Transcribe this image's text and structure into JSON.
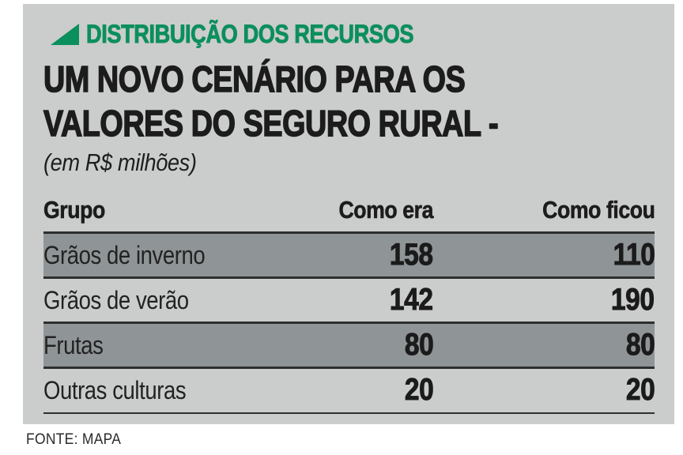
{
  "kicker": {
    "label": "DISTRIBUIÇÃO DOS RECURSOS",
    "color": "#0b8f5d",
    "icon": "triangle-lower-right"
  },
  "title": {
    "line1": "UM NOVO CENÁRIO PARA OS",
    "line2": "VALORES DO SEGURO RURAL -",
    "subtitle": "(em R$ milhões)"
  },
  "table": {
    "columns": [
      "Grupo",
      "Como era",
      "Como ficou"
    ],
    "rows": [
      {
        "grupo": "Grãos de inverno",
        "como_era": "158",
        "como_ficou": "110",
        "highlighted": true
      },
      {
        "grupo": "Grãos de verão",
        "como_era": "142",
        "como_ficou": "190",
        "highlighted": false
      },
      {
        "grupo": "Frutas",
        "como_era": "80",
        "como_ficou": "80",
        "highlighted": true
      },
      {
        "grupo": "Outras culturas",
        "como_era": "20",
        "como_ficou": "20",
        "highlighted": false
      }
    ]
  },
  "source": "FONTE: MAPA",
  "colors": {
    "card_background": "#cbcccc",
    "stripe_row": "#8f9496",
    "rule": "#2d2e2e",
    "accent_green": "#0b8f5d",
    "text": "#1c1c1c"
  },
  "chart_data": {
    "type": "table",
    "kicker": "DISTRIBUIÇÃO DOS RECURSOS",
    "title": "UM NOVO CENÁRIO PARA OS VALORES DO SEGURO RURAL",
    "subtitle": "(em R$ milhões)",
    "columns": [
      "Grupo",
      "Como era",
      "Como ficou"
    ],
    "rows": [
      [
        "Grãos de inverno",
        158,
        110
      ],
      [
        "Grãos de verão",
        142,
        190
      ],
      [
        "Frutas",
        80,
        80
      ],
      [
        "Outras culturas",
        20,
        20
      ]
    ],
    "source": "FONTE: MAPA"
  }
}
